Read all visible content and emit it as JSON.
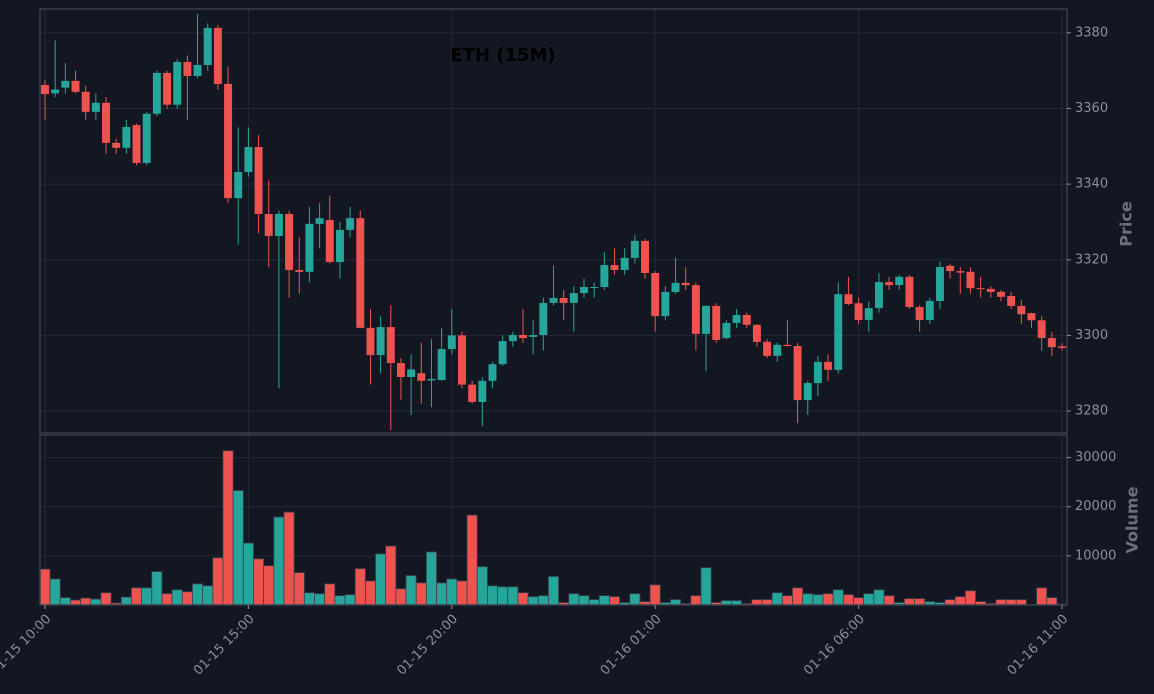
{
  "chart_data": {
    "type": "candlestick",
    "title": "ETH (15M)",
    "ylabel": "Price",
    "volume_label": "Volume",
    "x": [
      "01-15 10:00",
      "01-15 10:15",
      "01-15 10:30",
      "01-15 10:45",
      "01-15 11:00",
      "01-15 11:15",
      "01-15 11:30",
      "01-15 11:45",
      "01-15 12:00",
      "01-15 12:15",
      "01-15 12:30",
      "01-15 12:45",
      "01-15 13:00",
      "01-15 13:15",
      "01-15 13:30",
      "01-15 13:45",
      "01-15 14:00",
      "01-15 14:15",
      "01-15 14:30",
      "01-15 14:45",
      "01-15 15:00",
      "01-15 15:15",
      "01-15 15:30",
      "01-15 15:45",
      "01-15 16:00",
      "01-15 16:15",
      "01-15 16:30",
      "01-15 16:45",
      "01-15 17:00",
      "01-15 17:15",
      "01-15 17:30",
      "01-15 17:45",
      "01-15 18:00",
      "01-15 18:15",
      "01-15 18:30",
      "01-15 18:45",
      "01-15 19:00",
      "01-15 19:15",
      "01-15 19:30",
      "01-15 19:45",
      "01-15 20:00",
      "01-15 20:15",
      "01-15 20:30",
      "01-15 20:45",
      "01-15 21:00",
      "01-15 21:15",
      "01-15 21:30",
      "01-15 21:45",
      "01-15 22:00",
      "01-15 22:15",
      "01-15 22:30",
      "01-15 22:45",
      "01-15 23:00",
      "01-15 23:15",
      "01-15 23:30",
      "01-15 23:45",
      "01-16 00:00",
      "01-16 00:15",
      "01-16 00:30",
      "01-16 00:45",
      "01-16 01:00",
      "01-16 01:15",
      "01-16 01:30",
      "01-16 01:45",
      "01-16 02:00",
      "01-16 02:15",
      "01-16 02:30",
      "01-16 02:45",
      "01-16 03:00",
      "01-16 03:15",
      "01-16 03:30",
      "01-16 03:45",
      "01-16 04:00",
      "01-16 04:15",
      "01-16 04:30",
      "01-16 04:45",
      "01-16 05:00",
      "01-16 05:15",
      "01-16 05:30",
      "01-16 05:45",
      "01-16 06:00",
      "01-16 06:15",
      "01-16 06:30",
      "01-16 06:45",
      "01-16 07:00",
      "01-16 07:15",
      "01-16 07:30",
      "01-16 07:45",
      "01-16 08:00",
      "01-16 08:15",
      "01-16 08:30",
      "01-16 08:45",
      "01-16 09:00",
      "01-16 09:15",
      "01-16 09:30",
      "01-16 09:45",
      "01-16 10:00",
      "01-16 10:15",
      "01-16 10:30",
      "01-16 10:45",
      "01-16 11:00"
    ],
    "open": [
      3366.2,
      3364,
      3365.5,
      3367.3,
      3364.4,
      3359.1,
      3361.5,
      3350.9,
      3349.6,
      3355.6,
      3345.6,
      3358.6,
      3369.4,
      3361,
      3372.3,
      3368.6,
      3371.5,
      3381.3,
      3366.5,
      3336.3,
      3343.2,
      3349.8,
      3332.1,
      3326.3,
      3332.1,
      3317.3,
      3316.8,
      3329.5,
      3330.5,
      3319.4,
      3327.9,
      3331,
      3302,
      3294.8,
      3302.2,
      3292.7,
      3289,
      3290,
      3288.1,
      3288.2,
      3296.4,
      3300,
      3287,
      3282.4,
      3288,
      3292.4,
      3298.5,
      3300.1,
      3299.6,
      3300.1,
      3308.6,
      3309.9,
      3308.6,
      3311.2,
      3312.6,
      3312.8,
      3318.6,
      3317.3,
      3320.5,
      3325,
      3316.5,
      3305.1,
      3311.5,
      3313.9,
      3313.3,
      3300.4,
      3307.8,
      3299.3,
      3303.3,
      3305.4,
      3302.8,
      3298.3,
      3294.6,
      3297.5,
      3297.2,
      3282.9,
      3287.4,
      3293,
      3290.9,
      3310.9,
      3308.5,
      3304.1,
      3307.2,
      3314.1,
      3313.3,
      3315.5,
      3307.5,
      3304.1,
      3309.1,
      3318.4,
      3317,
      3316.8,
      3312.5,
      3312.3,
      3311.5,
      3310.4,
      3307.8,
      3305.9,
      3304,
      3299.3,
      3297.1
    ],
    "high": [
      3367.5,
      3378,
      3372,
      3370,
      3366,
      3364,
      3363,
      3352,
      3357,
      3356,
      3359,
      3370,
      3370,
      3373,
      3374,
      3385,
      3382.5,
      3382,
      3371,
      3355,
      3355,
      3353,
      3341,
      3333,
      3333,
      3326,
      3334,
      3335,
      3337,
      3330,
      3334,
      3333,
      3307,
      3305,
      3308,
      3294,
      3295,
      3298,
      3299,
      3302,
      3307,
      3301,
      3288,
      3289,
      3293,
      3300,
      3301,
      3307,
      3304,
      3310,
      3318.5,
      3312,
      3313,
      3315,
      3314,
      3322,
      3323,
      3323,
      3326.5,
      3325.5,
      3317,
      3313,
      3320.6,
      3318,
      3314,
      3308,
      3308.5,
      3304,
      3307,
      3306,
      3303,
      3299,
      3298,
      3304,
      3298,
      3288,
      3294.5,
      3295,
      3314,
      3315.5,
      3310,
      3309,
      3316.5,
      3315.5,
      3316,
      3316,
      3308,
      3310,
      3319.5,
      3319,
      3318,
      3318,
      3315.5,
      3313,
      3312,
      3311.5,
      3309.5,
      3306,
      3305,
      3301,
      3298
    ],
    "low": [
      3357,
      3363,
      3364,
      3364,
      3357,
      3357,
      3348,
      3348,
      3348,
      3345,
      3345,
      3358,
      3360,
      3360,
      3357,
      3368,
      3370,
      3365,
      3335,
      3324,
      3342,
      3327,
      3318,
      3286,
      3310,
      3311,
      3314,
      3323,
      3319,
      3315,
      3326,
      3302,
      3287,
      3290,
      3275,
      3283,
      3279,
      3282,
      3281,
      3288,
      3295,
      3286,
      3282,
      3276,
      3286,
      3292,
      3297,
      3298,
      3295,
      3296,
      3308,
      3304,
      3301,
      3310,
      3310,
      3312,
      3316,
      3316,
      3319,
      3315,
      3301,
      3304,
      3311,
      3312,
      3296,
      3290.5,
      3298,
      3299,
      3302,
      3302,
      3297,
      3294,
      3293,
      3297,
      3276.8,
      3279,
      3284,
      3288,
      3290,
      3308,
      3303,
      3301,
      3306,
      3312,
      3312,
      3307,
      3301,
      3303,
      3307,
      3315,
      3311,
      3311,
      3310,
      3310,
      3309,
      3307,
      3303,
      3302,
      3296,
      3294.5,
      3296
    ],
    "close": [
      3363.8,
      3365,
      3367.3,
      3364.4,
      3359.1,
      3361.5,
      3350.9,
      3349.6,
      3355.1,
      3345.6,
      3358.6,
      3369.4,
      3361,
      3372.3,
      3368.6,
      3371.5,
      3381.3,
      3366.5,
      3336.3,
      3343.2,
      3349.8,
      3332.1,
      3326.3,
      3332.1,
      3317.3,
      3316.8,
      3329.5,
      3331,
      3319.4,
      3327.9,
      3331,
      3302,
      3294.8,
      3302.2,
      3292.7,
      3289,
      3291,
      3288,
      3288.5,
      3296.4,
      3300,
      3287,
      3282.4,
      3288,
      3292.4,
      3298.5,
      3300.1,
      3299.3,
      3300.1,
      3308.6,
      3309.9,
      3308.6,
      3311.2,
      3312.8,
      3312.8,
      3318.6,
      3317.3,
      3320.5,
      3325,
      3316.5,
      3305.1,
      3311.5,
      3313.9,
      3313.3,
      3300.4,
      3307.8,
      3298.8,
      3303.3,
      3305.4,
      3302.8,
      3298.3,
      3294.6,
      3297.5,
      3297.2,
      3282.9,
      3287.4,
      3293,
      3290.9,
      3310.9,
      3308.3,
      3304.1,
      3307.2,
      3314.1,
      3313.3,
      3315.5,
      3307.5,
      3304.1,
      3309.1,
      3318.1,
      3317,
      3316.6,
      3312.5,
      3312.3,
      3311.5,
      3310.2,
      3307.8,
      3305.6,
      3304,
      3299.3,
      3296.9,
      3296.7
    ],
    "volume": [
      7300,
      5300,
      1500,
      1000,
      1400,
      1200,
      2500,
      400,
      1600,
      3500,
      3500,
      6800,
      2300,
      3100,
      2700,
      4300,
      3900,
      9600,
      31400,
      23300,
      12600,
      9400,
      8000,
      17900,
      18900,
      6600,
      2500,
      2300,
      4300,
      1900,
      2100,
      7400,
      4900,
      10400,
      12000,
      3300,
      6000,
      4500,
      10800,
      4500,
      5300,
      4900,
      18300,
      7800,
      3900,
      3700,
      3700,
      2500,
      1700,
      1900,
      5800,
      500,
      2300,
      1900,
      1100,
      1900,
      1700,
      500,
      2300,
      700,
      4100,
      500,
      1100,
      300,
      1900,
      7600,
      500,
      900,
      900,
      300,
      1100,
      1100,
      2500,
      1900,
      3500,
      2300,
      2100,
      2300,
      3100,
      2100,
      1500,
      2300,
      3100,
      1900,
      500,
      1300,
      1300,
      700,
      500,
      1100,
      1700,
      2900,
      700,
      300,
      1100,
      1100,
      1100,
      100,
      3500,
      1500,
      200
    ],
    "ylim": [
      3274.2,
      3386.3
    ],
    "yticks": [
      3280,
      3300,
      3320,
      3340,
      3360,
      3380
    ],
    "volume_ylim": [
      0,
      34600
    ],
    "volume_yticks": [
      10000,
      20000,
      30000
    ],
    "xticks": [
      "01-15 10:00",
      "01-15 15:00",
      "01-15 20:00",
      "01-16 01:00",
      "01-16 06:00",
      "01-16 11:00"
    ],
    "up_color": "#26a69a",
    "down_color": "#ef5350",
    "grid": true
  }
}
